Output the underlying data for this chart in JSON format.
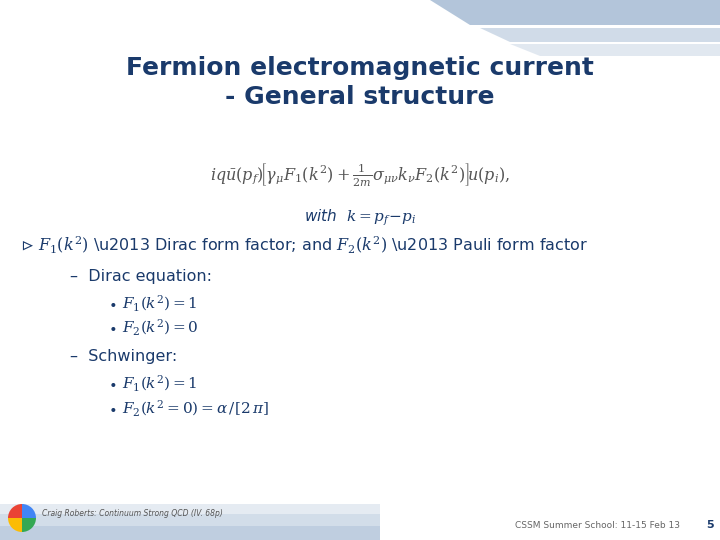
{
  "title_line1": "Fermion electromagnetic current",
  "title_line2": "- General structure",
  "title_color": "#1a3a6b",
  "title_fontsize": 18,
  "bg_color": "#FFFFFF",
  "accent_color": "#8BA7C7",
  "text_color": "#1a3a6b",
  "eq_color": "#555555",
  "with_text": "with  $k = p_f{-}p_i$",
  "footer_left": "Craig Roberts: Continuum Strong QCD (IV. 68p)",
  "footer_right": "CSSM Summer School: 11-15 Feb 13",
  "page_number": "5"
}
